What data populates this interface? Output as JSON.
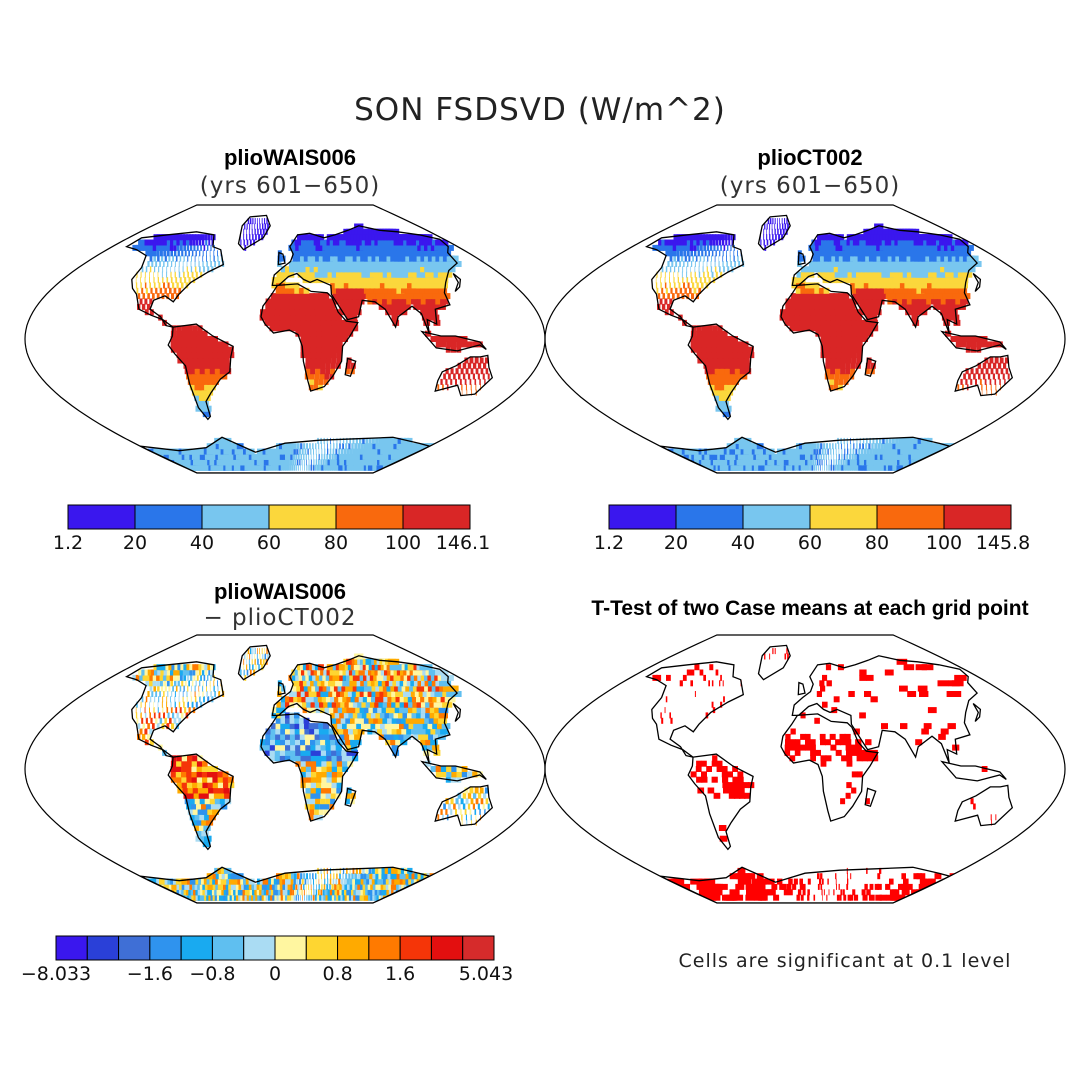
{
  "title": "SON FSDSVD (W/m^2)",
  "panels": [
    {
      "title": "plioWAIS006",
      "subtitle": "(yrs 601−650)"
    },
    {
      "title": "plioCT002",
      "subtitle": "(yrs 601−650)"
    },
    {
      "title": "plioWAIS006",
      "subtitle": "− plioCT002"
    },
    {
      "title": "T-Test of two Case means at each grid point",
      "subtitle": ""
    }
  ],
  "colorbars": {
    "panel1": {
      "colors": [
        "#3a17ee",
        "#2a76ea",
        "#78c6ef",
        "#fbd73c",
        "#f9690d",
        "#d92626"
      ],
      "labels": [
        "1.2",
        "20",
        "40",
        "60",
        "80",
        "100",
        "146.1"
      ]
    },
    "panel2": {
      "colors": [
        "#3a17ee",
        "#2a76ea",
        "#78c6ef",
        "#fbd73c",
        "#f9690d",
        "#d92626"
      ],
      "labels": [
        "1.2",
        "20",
        "40",
        "60",
        "80",
        "100",
        "145.8"
      ]
    },
    "panel3": {
      "colors": [
        "#3a17ee",
        "#2a40d8",
        "#3f6fd6",
        "#2f93ee",
        "#19aaf0",
        "#5fbff0",
        "#aadcf3",
        "#fff6a0",
        "#fed631",
        "#ffaa00",
        "#ff7a00",
        "#f53508",
        "#e30f0f",
        "#d62b2b"
      ],
      "labels": [
        "−8.033",
        "−1.6",
        "−0.8",
        "0",
        "0.8",
        "1.6",
        "5.043"
      ]
    }
  },
  "significance_note": "Cells are significant at 0.1 level",
  "colors": {
    "land_outline": "#000000",
    "significant_cell": "#ff0000"
  }
}
